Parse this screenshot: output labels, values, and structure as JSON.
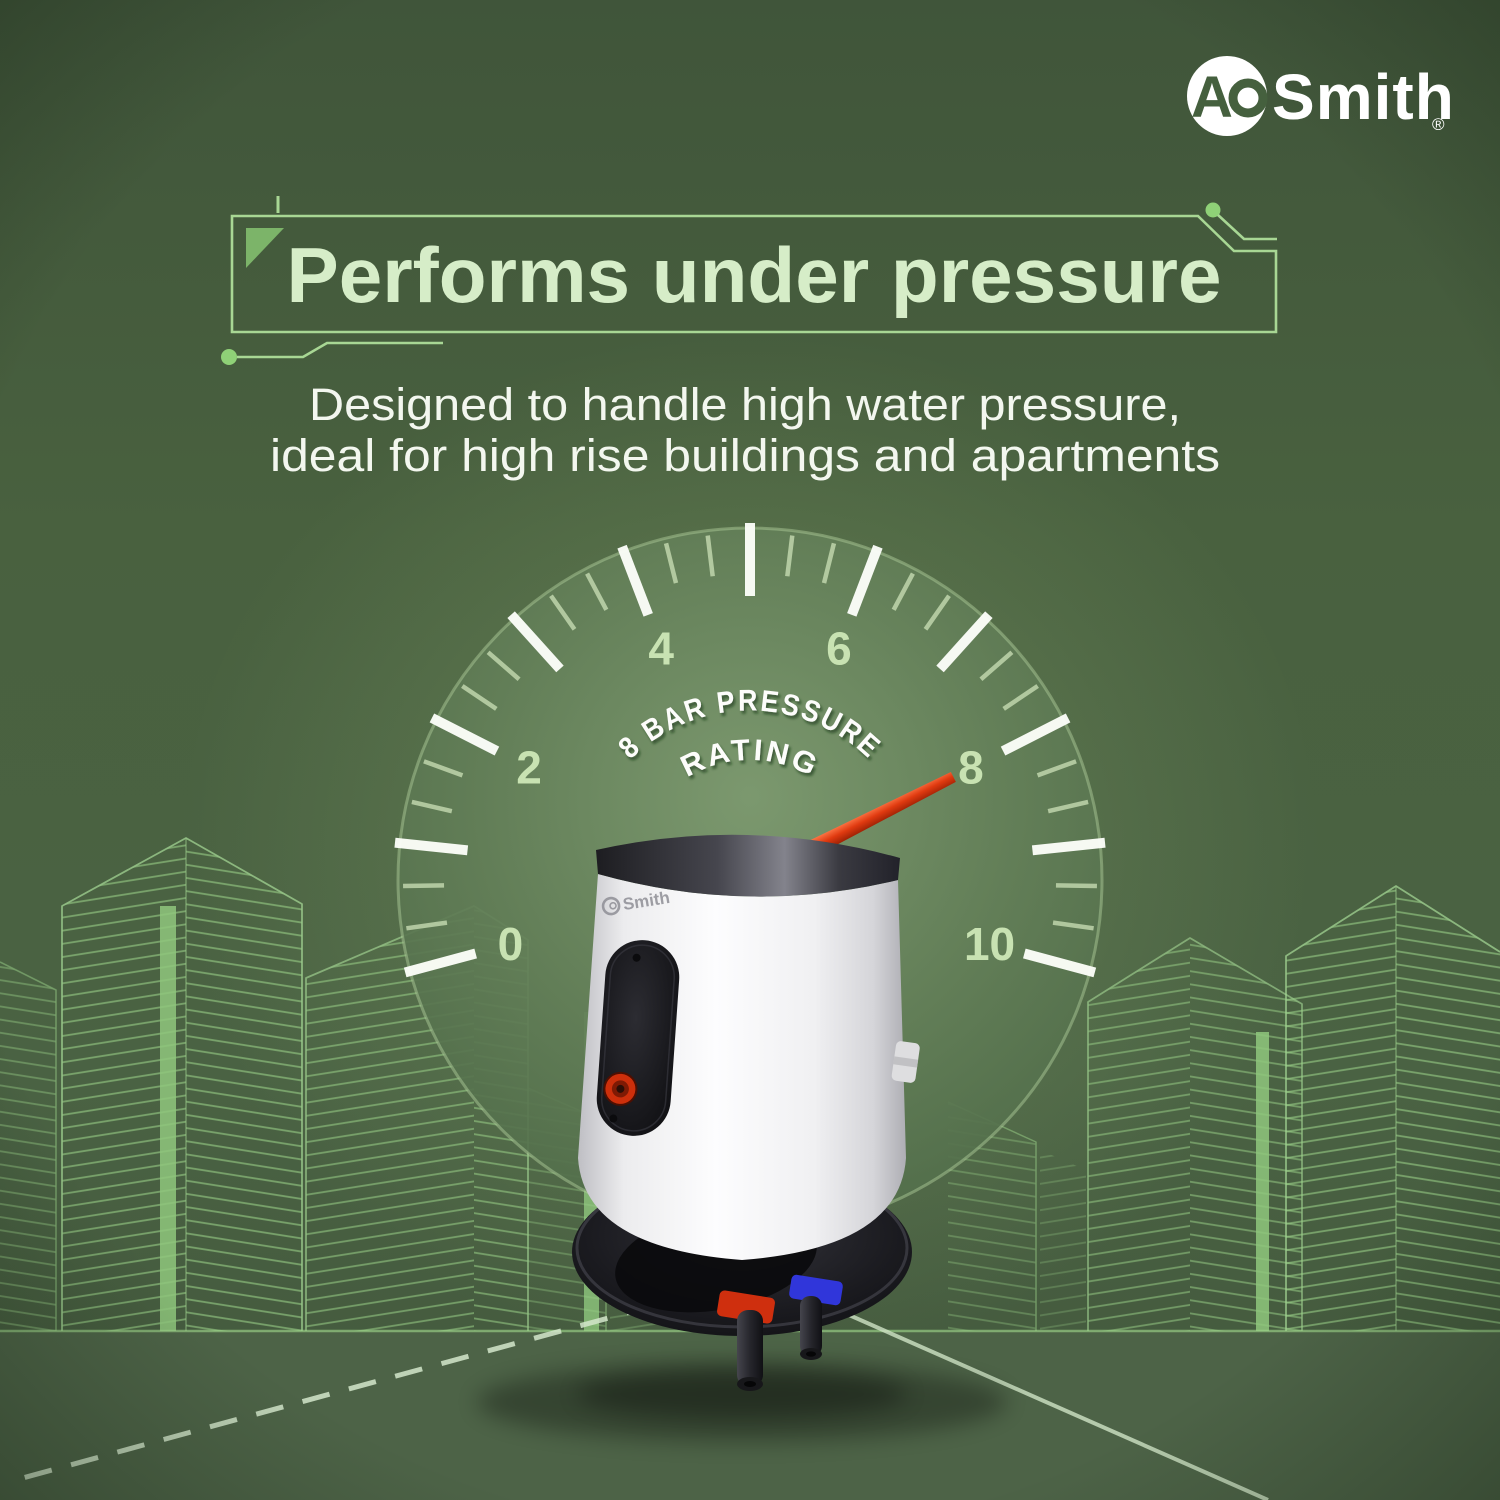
{
  "brand": {
    "monogram_a": "A",
    "monogram_o": "O",
    "name": "Smith",
    "registered": "®"
  },
  "header": {
    "title": "Performs under pressure",
    "subtitle_line1": "Designed to handle high water pressure,",
    "subtitle_line2": "ideal for high rise buildings and apartments"
  },
  "gauge": {
    "type": "gauge",
    "min": 0,
    "max": 10,
    "value": 8,
    "degrees_per_unit": 21,
    "tick_labels": [
      "0",
      "2",
      "4",
      "6",
      "8",
      "10"
    ],
    "caption_line1": "8 BAR PRESSURE",
    "caption_line2": "RATING"
  },
  "product": {
    "body_logo": "Smith"
  },
  "colors": {
    "background_green": "#49613f",
    "mint_heading": "#d6edc8",
    "circuit_green": "#a8d794",
    "skyline_green": "#9bd289",
    "tick_white": "#fbfdf8",
    "gauge_label_green": "#c8e2b2",
    "needle_red": "#e03a10",
    "hot_inlet_red": "#cf2f0e",
    "cold_inlet_blue": "#2a2ed0"
  }
}
